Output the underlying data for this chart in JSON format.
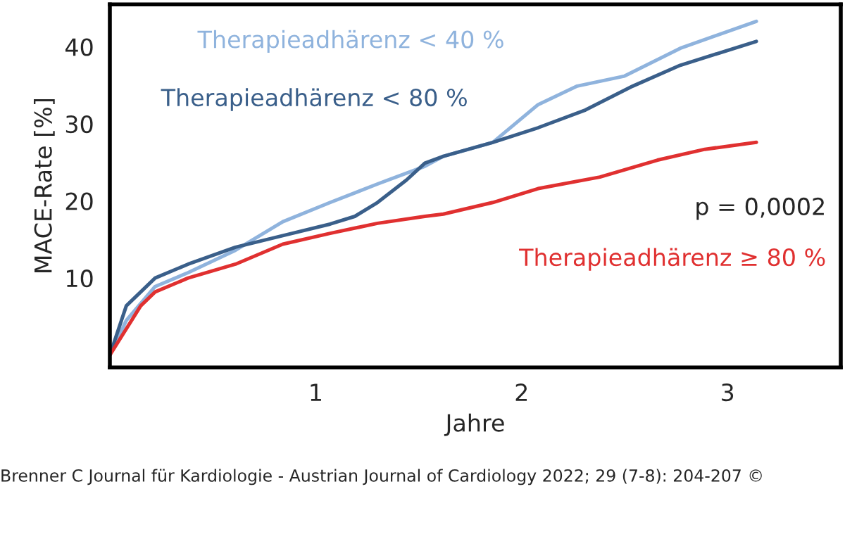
{
  "chart_data": {
    "type": "line",
    "xlabel": "Jahre",
    "ylabel": "MACE-Rate [%]",
    "xlim": [
      0,
      3.55
    ],
    "ylim": [
      -1.6,
      45.5
    ],
    "xticks": [
      1,
      2,
      3
    ],
    "yticks": [
      10,
      20,
      30,
      40
    ],
    "grid": false,
    "legend": false,
    "marker": "none",
    "line_style": "solid",
    "series": [
      {
        "name": "Therapieadhärenz < 40 %",
        "color": "#8fb3dd",
        "x": [
          0,
          0.08,
          0.22,
          0.38,
          0.61,
          0.84,
          1.07,
          1.3,
          1.53,
          1.62,
          1.86,
          2.08,
          2.27,
          2.5,
          2.77,
          3.14
        ],
        "values": [
          0,
          4.5,
          8.9,
          10.7,
          13.6,
          17.3,
          19.8,
          22.2,
          24.5,
          25.8,
          27.6,
          32.5,
          34.9,
          36.2,
          39.8,
          43.3
        ]
      },
      {
        "name": "Therapieadhärenz < 80 %",
        "color": "#3a5f8a",
        "x": [
          0,
          0.08,
          0.22,
          0.38,
          0.61,
          0.84,
          1.07,
          1.19,
          1.3,
          1.44,
          1.53,
          1.62,
          1.86,
          2.08,
          2.31,
          2.54,
          2.77,
          3.14
        ],
        "values": [
          0,
          6.4,
          10,
          11.8,
          14,
          15.5,
          17,
          18,
          19.8,
          22.7,
          24.9,
          25.8,
          27.6,
          29.5,
          31.8,
          34.9,
          37.6,
          40.7
        ]
      },
      {
        "name": "Therapieadhärenz ≥ 80 %",
        "color": "#e03030",
        "x": [
          0,
          0.15,
          0.22,
          0.38,
          0.61,
          0.84,
          1.07,
          1.3,
          1.53,
          1.62,
          1.86,
          2.08,
          2.38,
          2.66,
          2.89,
          3.14
        ],
        "values": [
          0,
          6.4,
          8.2,
          10,
          11.8,
          14.4,
          15.8,
          17.1,
          18,
          18.3,
          19.8,
          21.6,
          23.1,
          25.3,
          26.7,
          27.6
        ]
      }
    ],
    "annotations": [
      "p = 0,0002",
      "Brenner C Journal für Kardiologie - Austrian Journal of Cardiology 2022; 29 (7-8): 204-207 ©"
    ]
  }
}
